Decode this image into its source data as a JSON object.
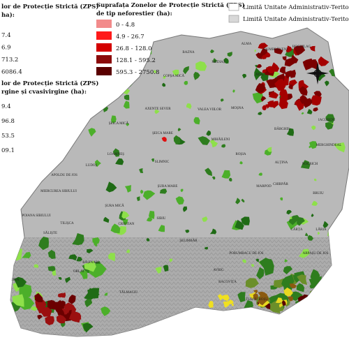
{
  "legends": [
    {
      "title": [
        "lor de Protecție Strictă (ZPS)",
        "ha):"
      ],
      "items": [
        {
          "label": "7.4"
        },
        {
          "label": "6.9"
        },
        {
          "label": "713.2"
        },
        {
          "label": "6086.4"
        }
      ]
    },
    {
      "title": [
        "lor de Protecție Strictă (ZPS)",
        "rgine și cvasivirgine (ha):"
      ],
      "items": [
        {
          "label": "9.4"
        },
        {
          "label": "96.8"
        },
        {
          "label": "53.5"
        },
        {
          "label": "09.1"
        }
      ]
    },
    {
      "title": [
        "Suprafața Zonelor de Protecție Strictă (ZPS)",
        "de tip neforestier (ha):"
      ],
      "items": [
        {
          "label": "0 - 4.8",
          "color": "#f28b8b"
        },
        {
          "label": "4.9 - 26.7",
          "color": "#ff1a1a"
        },
        {
          "label": "26.8 - 128.0",
          "color": "#d40000"
        },
        {
          "label": "128.1 - 595.2",
          "color": "#8b0a0a"
        },
        {
          "label": "595.3 - 2750.8",
          "color": "#5a0000"
        }
      ]
    }
  ],
  "boundary_legend": {
    "items": [
      {
        "label": "Limită Unitate Administrativ-Teritorială",
        "color": "#ffffff"
      },
      {
        "label": "Limită Unitate Administrativ-Teritorială",
        "color": "#d8d8d8"
      }
    ]
  },
  "places": [
    {
      "name": "BAZNA"
    },
    {
      "name": "ALMA"
    },
    {
      "name": "HOGHILAG"
    },
    {
      "name": "DUMBRĂVENI"
    },
    {
      "name": "MEDIAȘ"
    },
    {
      "name": "ATEL"
    },
    {
      "name": "COPȘA MICĂ"
    },
    {
      "name": "MOȘNA"
    },
    {
      "name": "AXENTE SEVER"
    },
    {
      "name": "VALEA VIILOR"
    },
    {
      "name": "ȘEICA MARE"
    },
    {
      "name": "ȘEICA MICĂ"
    },
    {
      "name": "MIHĂILENI"
    },
    {
      "name": "BÂRGHIS"
    },
    {
      "name": "IACOBENI"
    },
    {
      "name": "MERGHINDEAL"
    },
    {
      "name": "SLIMNIC"
    },
    {
      "name": "ALȚINA"
    },
    {
      "name": "LOAMNEȘ"
    },
    {
      "name": "LUDOȘ"
    },
    {
      "name": "APOLDU DE JOS"
    },
    {
      "name": "MIERCUREA SIBIULUI"
    },
    {
      "name": "POIANA SIBIULUI"
    },
    {
      "name": "TILIȘCA"
    },
    {
      "name": "SĂLIȘTE"
    },
    {
      "name": "CRISTIAN"
    },
    {
      "name": "ȘURA MARE"
    },
    {
      "name": "ȘURA MICĂ"
    },
    {
      "name": "SIBIU"
    },
    {
      "name": "ȘELIMBĂR"
    },
    {
      "name": "CHIRPĂR"
    },
    {
      "name": "MARPOD"
    },
    {
      "name": "BRUIU"
    },
    {
      "name": "ARPAȘU DE JOS"
    },
    {
      "name": "PORUMBACU DE JOS"
    },
    {
      "name": "AVRIG"
    },
    {
      "name": "RACOVIȚA"
    },
    {
      "name": "TURNU ROȘU"
    },
    {
      "name": "TĂLMACIU"
    },
    {
      "name": "RĂȘINARI"
    },
    {
      "name": "ORLAT"
    },
    {
      "name": "JINA"
    },
    {
      "name": "CÂRȚA"
    },
    {
      "name": "NOCRICH"
    },
    {
      "name": "ROȘIA"
    },
    {
      "name": "LĂRIA"
    }
  ]
}
